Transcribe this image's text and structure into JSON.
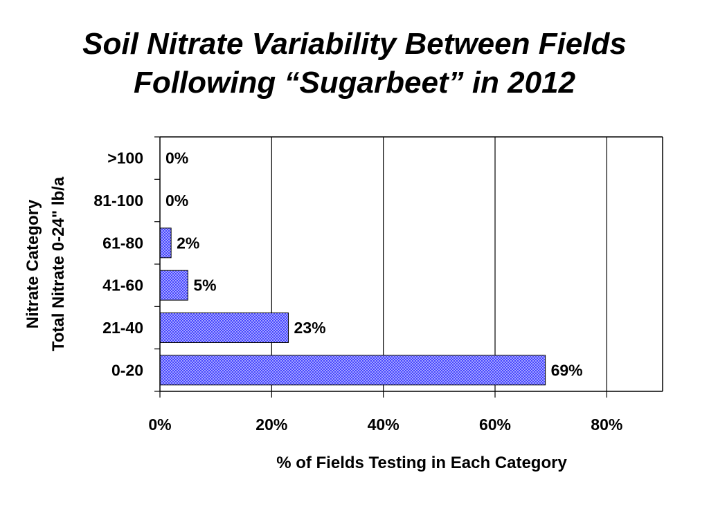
{
  "chart_data": {
    "type": "bar",
    "orientation": "horizontal",
    "title_lines": [
      "Soil Nitrate Variability Between Fields",
      "Following “Sugarbeet” in 2012"
    ],
    "ylabel_lines": [
      "Nitrate Category",
      "Total Nitrate 0-24\" lb/a"
    ],
    "xlabel": "% of Fields Testing in Each Category",
    "categories": [
      "0-20",
      "21-40",
      "41-60",
      "61-80",
      "81-100",
      ">100"
    ],
    "values": [
      69,
      23,
      5,
      2,
      0,
      0
    ],
    "data_labels": [
      "69%",
      "23%",
      "5%",
      "2%",
      "0%",
      "0%"
    ],
    "xlim": [
      0,
      90
    ],
    "xticks": [
      0,
      20,
      40,
      60,
      80
    ],
    "xtick_labels": [
      "0%",
      "20%",
      "40%",
      "60%",
      "80%"
    ],
    "grid": "vertical",
    "legend": "none",
    "bar_color": "#3333ff",
    "bar_pattern": "crosshatch"
  }
}
